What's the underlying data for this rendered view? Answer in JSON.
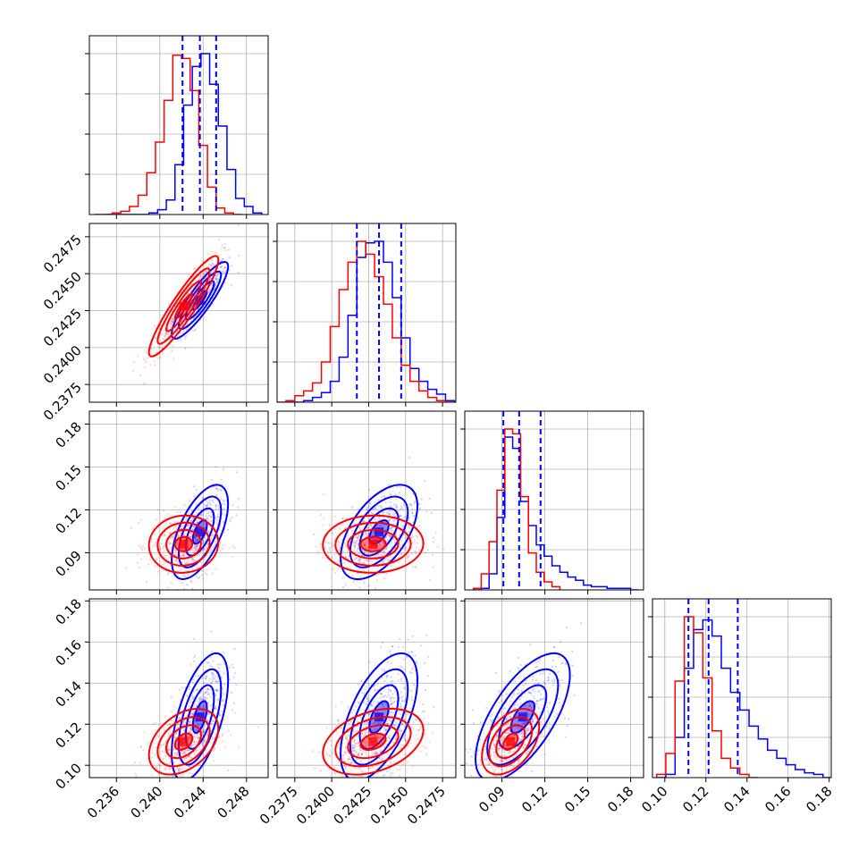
{
  "colors": {
    "series_a": "#0000ff",
    "series_b": "#ff0000"
  },
  "chart_data": {
    "type": "corner",
    "title": "",
    "parameters": [
      "",
      "",
      "",
      ""
    ],
    "ranges": [
      [
        0.2335,
        0.25
      ],
      [
        0.2363,
        0.2484
      ],
      [
        0.064,
        0.189
      ],
      [
        0.094,
        0.181
      ]
    ],
    "tick_labels": [
      [
        "0.236",
        "0.240",
        "0.244",
        "0.248"
      ],
      [
        "0.2375",
        "0.2400",
        "0.2425",
        "0.2450",
        "0.2475"
      ],
      [
        "0.09",
        "0.12",
        "0.15",
        "0.18"
      ],
      [
        "0.10",
        "0.12",
        "0.14",
        "0.16",
        "0.18"
      ]
    ],
    "quantiles": [
      [
        0.2421,
        0.2437,
        0.2452
      ],
      [
        0.2417,
        0.2432,
        0.2447
      ],
      [
        0.091,
        0.102,
        0.117
      ],
      [
        0.1115,
        0.1213,
        0.1355
      ]
    ],
    "grid": true,
    "series": [
      {
        "color": "#0000ff",
        "histograms": [
          {
            "edges": [
              0.235,
              0.2358,
              0.2366,
              0.2374,
              0.2382,
              0.239,
              0.2398,
              0.2406,
              0.2414,
              0.2422,
              0.243,
              0.2438,
              0.2446,
              0.2454,
              0.2462,
              0.247,
              0.2478,
              0.2486,
              0.2494
            ],
            "counts": [
              0.0,
              0.0,
              0.0,
              0.0,
              0.0,
              0.01,
              0.03,
              0.09,
              0.31,
              0.68,
              0.92,
              1.0,
              0.81,
              0.55,
              0.28,
              0.1,
              0.05,
              0.01
            ]
          },
          {
            "edges": [
              0.2369,
              0.2375,
              0.2381,
              0.2387,
              0.2393,
              0.2399,
              0.2405,
              0.2411,
              0.2417,
              0.2423,
              0.2429,
              0.2435,
              0.2441,
              0.2447,
              0.2453,
              0.2459,
              0.2465,
              0.2471,
              0.2477,
              0.2483
            ],
            "counts": [
              0.0,
              0.0,
              0.01,
              0.03,
              0.06,
              0.13,
              0.28,
              0.54,
              0.9,
              0.99,
              1.0,
              0.87,
              0.65,
              0.4,
              0.21,
              0.13,
              0.08,
              0.05,
              0.01
            ]
          },
          {
            "edges": [
              0.07,
              0.0755,
              0.081,
              0.0865,
              0.092,
              0.0975,
              0.103,
              0.1085,
              0.114,
              0.1195,
              0.125,
              0.1305,
              0.136,
              0.1415,
              0.147,
              0.1525,
              0.158,
              0.1635,
              0.169,
              0.1745,
              0.18,
              0.1855
            ],
            "counts": [
              0.0,
              0.01,
              0.1,
              0.45,
              0.95,
              0.88,
              0.55,
              0.4,
              0.28,
              0.21,
              0.15,
              0.11,
              0.08,
              0.06,
              0.03,
              0.02,
              0.02,
              0.01,
              0.01,
              0.01,
              0.0
            ]
          },
          {
            "edges": [
              0.096,
              0.1005,
              0.105,
              0.1095,
              0.114,
              0.1185,
              0.123,
              0.1275,
              0.132,
              0.1365,
              0.141,
              0.1455,
              0.15,
              0.1545,
              0.159,
              0.1635,
              0.168,
              0.1725,
              0.177,
              0.1815
            ],
            "counts": [
              0.0,
              0.02,
              0.25,
              0.68,
              0.92,
              0.98,
              0.88,
              0.68,
              0.53,
              0.42,
              0.32,
              0.24,
              0.17,
              0.12,
              0.08,
              0.05,
              0.03,
              0.02,
              0.0
            ]
          }
        ],
        "means": [
          0.2437,
          0.2432,
          0.1045,
          0.1235
        ],
        "stds": [
          0.0013,
          0.0013,
          0.0165,
          0.0155
        ],
        "correlations": [
          [
            1,
            0.88,
            0.6,
            0.58
          ],
          [
            0.88,
            1,
            0.55,
            0.58
          ],
          [
            0.6,
            0.55,
            1,
            0.66
          ],
          [
            0.58,
            0.58,
            0.66,
            1
          ]
        ]
      },
      {
        "color": "#ff0000",
        "histograms": [
          {
            "edges": [
              0.234,
              0.2348,
              0.2356,
              0.2364,
              0.2372,
              0.238,
              0.2388,
              0.2396,
              0.2404,
              0.2412,
              0.242,
              0.2428,
              0.2436,
              0.2444,
              0.2452,
              0.246,
              0.2468,
              0.2476
            ],
            "counts": [
              0.0,
              0.0,
              0.01,
              0.02,
              0.05,
              0.12,
              0.26,
              0.45,
              0.71,
              0.99,
              0.97,
              0.77,
              0.43,
              0.17,
              0.04,
              0.01,
              0.0
            ]
          },
          {
            "edges": [
              0.2363,
              0.2369,
              0.2375,
              0.2381,
              0.2387,
              0.2393,
              0.2399,
              0.2405,
              0.2411,
              0.2417,
              0.2423,
              0.2429,
              0.2435,
              0.2441,
              0.2447,
              0.2453,
              0.2459,
              0.2465,
              0.2471,
              0.2477,
              0.2483
            ],
            "counts": [
              0.0,
              0.01,
              0.04,
              0.07,
              0.12,
              0.25,
              0.47,
              0.7,
              0.87,
              1.0,
              0.92,
              0.78,
              0.61,
              0.4,
              0.23,
              0.13,
              0.07,
              0.03,
              0.01,
              0.0
            ]
          },
          {
            "edges": [
              0.07,
              0.0755,
              0.081,
              0.0865,
              0.092,
              0.0975,
              0.103,
              0.1085,
              0.114,
              0.1195,
              0.125,
              0.1305
            ],
            "counts": [
              0.01,
              0.1,
              0.3,
              0.62,
              1.0,
              0.97,
              0.58,
              0.23,
              0.11,
              0.05,
              0.02
            ]
          },
          {
            "edges": [
              0.096,
              0.1005,
              0.105,
              0.1095,
              0.114,
              0.1185,
              0.123,
              0.1275,
              0.132,
              0.1365,
              0.141,
              0.1455
            ],
            "counts": [
              0.02,
              0.15,
              0.6,
              1.0,
              0.9,
              0.62,
              0.29,
              0.12,
              0.06,
              0.02,
              0.0
            ]
          }
        ],
        "means": [
          0.2422,
          0.2428,
          0.096,
          0.1115
        ],
        "stds": [
          0.0016,
          0.0017,
          0.01,
          0.008
        ],
        "correlations": [
          [
            1,
            0.92,
            0.05,
            0.4
          ],
          [
            0.92,
            1,
            0.03,
            0.35
          ],
          [
            0.05,
            0.03,
            1,
            0.45
          ],
          [
            0.4,
            0.35,
            0.45,
            1
          ]
        ]
      }
    ]
  }
}
